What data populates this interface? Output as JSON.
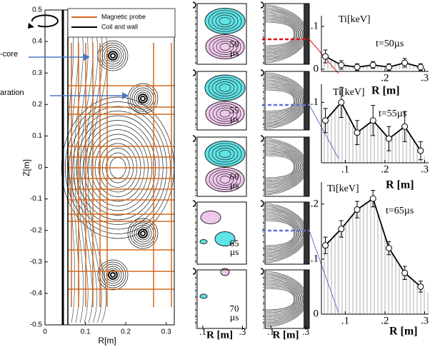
{
  "chart_data": [
    {
      "type": "contour",
      "xlabel": "R[m]",
      "ylabel": "Z[m]",
      "xlim": [
        0,
        0.32
      ],
      "ylim": [
        -0.5,
        0.5
      ],
      "xticks": [
        0,
        0.1,
        0.2,
        0.3
      ],
      "yticks": [
        0.5,
        0.4,
        0.3,
        0.2,
        0.1,
        0,
        -0.1,
        -0.2,
        -0.3,
        -0.4,
        -0.5
      ],
      "series": [
        {
          "name": "Magnetic probe",
          "color": "#d2691e"
        },
        {
          "name": "Coil and wall",
          "color": "#000000"
        }
      ],
      "annotations": [
        "-core",
        "aration"
      ]
    },
    {
      "type": "contour-grid",
      "times": [
        "50",
        "55",
        "60",
        "65",
        "70"
      ],
      "time_unit": "µs",
      "xlabel": "R [m]",
      "xlim": [
        0.05,
        0.32
      ],
      "xticks": [
        {
          "value": 0.1,
          "label": ".1"
        },
        {
          "value": 0.3,
          "label": ".3"
        }
      ]
    },
    {
      "type": "line",
      "ylabel": "Ti[keV]",
      "annotation": "t=50µs",
      "xlabel": "R [m]",
      "color": "#000000",
      "x": [
        0.05,
        0.09,
        0.13,
        0.17,
        0.21,
        0.25,
        0.29
      ],
      "values": [
        0.03,
        0.01,
        0.005,
        0.01,
        0.005,
        0.015,
        0.005
      ],
      "errors": [
        0.015,
        0.01,
        0.008,
        0.008,
        0.008,
        0.01,
        0.008
      ],
      "xlim": [
        0.04,
        0.31
      ],
      "ylim": [
        -0.005,
        0.125
      ],
      "xticks": [
        {
          "value": 0.2,
          "label": ".2"
        },
        {
          "value": 0.3,
          "label": ".3"
        }
      ],
      "yticks": [
        0,
        {
          "value": 0.1,
          "label": ".1"
        }
      ]
    },
    {
      "type": "line",
      "ylabel": "Ti[keV]",
      "annotation": "t=55µs",
      "xlabel": "R [m]",
      "color": "#000000",
      "x": [
        0.05,
        0.09,
        0.13,
        0.17,
        0.21,
        0.25,
        0.29
      ],
      "values": [
        0.07,
        0.1,
        0.05,
        0.07,
        0.04,
        0.06,
        0.02
      ],
      "errors": [
        0.02,
        0.025,
        0.02,
        0.025,
        0.02,
        0.025,
        0.015
      ],
      "xlim": [
        0.04,
        0.31
      ],
      "ylim": [
        0,
        0.13
      ],
      "xticks": [
        {
          "value": 0.1,
          "label": ".1"
        },
        {
          "value": 0.2,
          "label": ".2"
        },
        {
          "value": 0.3,
          "label": ".3"
        }
      ],
      "yticks": [
        {
          "value": 0.1,
          "label": ".1"
        }
      ]
    },
    {
      "type": "line",
      "ylabel": "Ti[keV]",
      "annotation": "t=65µs",
      "xlabel": "R [m]",
      "color": "#000000",
      "x": [
        0.05,
        0.09,
        0.13,
        0.17,
        0.21,
        0.25,
        0.29
      ],
      "values": [
        0.125,
        0.155,
        0.19,
        0.21,
        0.12,
        0.075,
        0.05
      ],
      "errors": [
        0.015,
        0.015,
        0.015,
        0.015,
        0.012,
        0.012,
        0.01
      ],
      "xlim": [
        0.04,
        0.31
      ],
      "ylim": [
        0,
        0.24
      ],
      "xticks": [
        {
          "value": 0.1,
          "label": ".1"
        },
        {
          "value": 0.2,
          "label": ".2"
        },
        {
          "value": 0.3,
          "label": ".3"
        }
      ],
      "yticks": [
        0,
        {
          "value": 0.1,
          "label": ".1"
        },
        {
          "value": 0.2,
          "label": ".2"
        }
      ]
    }
  ]
}
